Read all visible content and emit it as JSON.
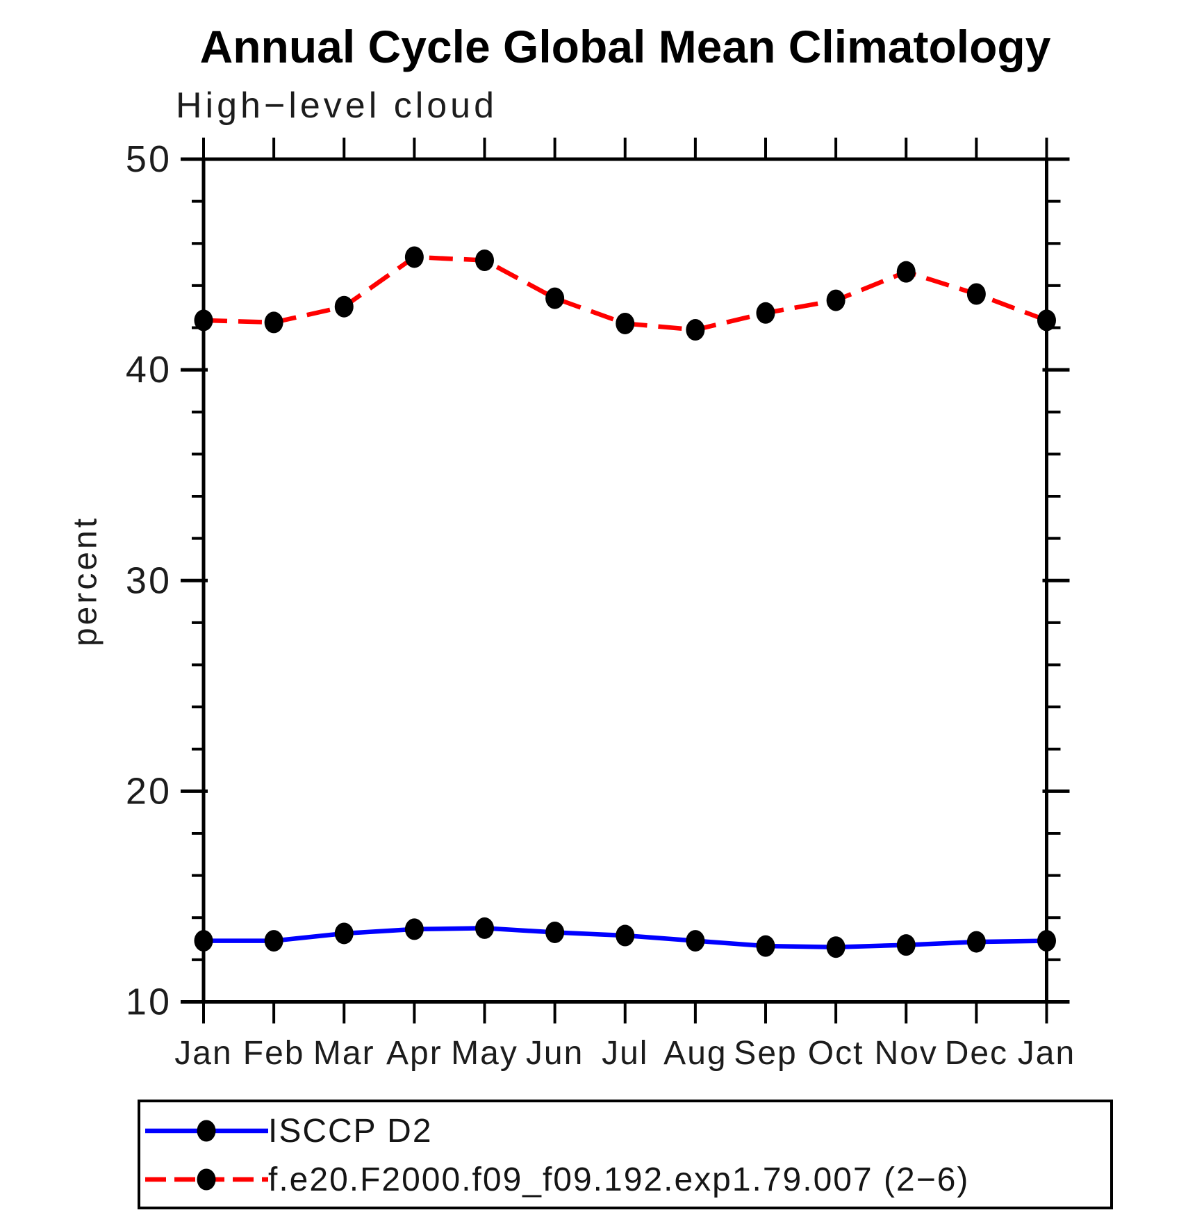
{
  "header": {
    "title": "Annual Cycle Global Mean Climatology",
    "subtitle": "High−level cloud"
  },
  "axes": {
    "ylabel": "percent",
    "x_tick_labels": [
      "Jan",
      "Feb",
      "Mar",
      "Apr",
      "May",
      "Jun",
      "Jul",
      "Aug",
      "Sep",
      "Oct",
      "Nov",
      "Dec",
      "Jan"
    ],
    "y_major_tick_labels": [
      "50",
      "40",
      "30",
      "20",
      "10"
    ]
  },
  "chart_data": {
    "type": "line",
    "title": "Annual Cycle Global Mean Climatology",
    "subtitle": "High-level cloud",
    "xlabel": "",
    "ylabel": "percent",
    "categories": [
      "Jan",
      "Feb",
      "Mar",
      "Apr",
      "May",
      "Jun",
      "Jul",
      "Aug",
      "Sep",
      "Oct",
      "Nov",
      "Dec",
      "Jan"
    ],
    "ylim": [
      10,
      50
    ],
    "ytick_major": [
      50,
      40,
      30,
      20,
      10
    ],
    "ytick_minor_interval": 2,
    "grid": false,
    "legend_position": "bottom-left-box",
    "marker": "filled-ellipse",
    "marker_color": "#000000",
    "frame_color": "#000000",
    "series": [
      {
        "name": "ISCCP D2",
        "color": "#0000ff",
        "line_style": "solid",
        "values": [
          12.9,
          12.9,
          13.25,
          13.45,
          13.5,
          13.3,
          13.15,
          12.9,
          12.65,
          12.6,
          12.7,
          12.85,
          12.9
        ]
      },
      {
        "name": "f.e20.F2000.f09_f09.192.exp1.79.007 (2−6)",
        "color": "#ff0000",
        "line_style": "dashed",
        "values": [
          42.35,
          42.25,
          43.0,
          45.35,
          45.2,
          43.4,
          42.2,
          41.9,
          42.7,
          43.3,
          44.65,
          43.6,
          42.35
        ]
      }
    ]
  }
}
